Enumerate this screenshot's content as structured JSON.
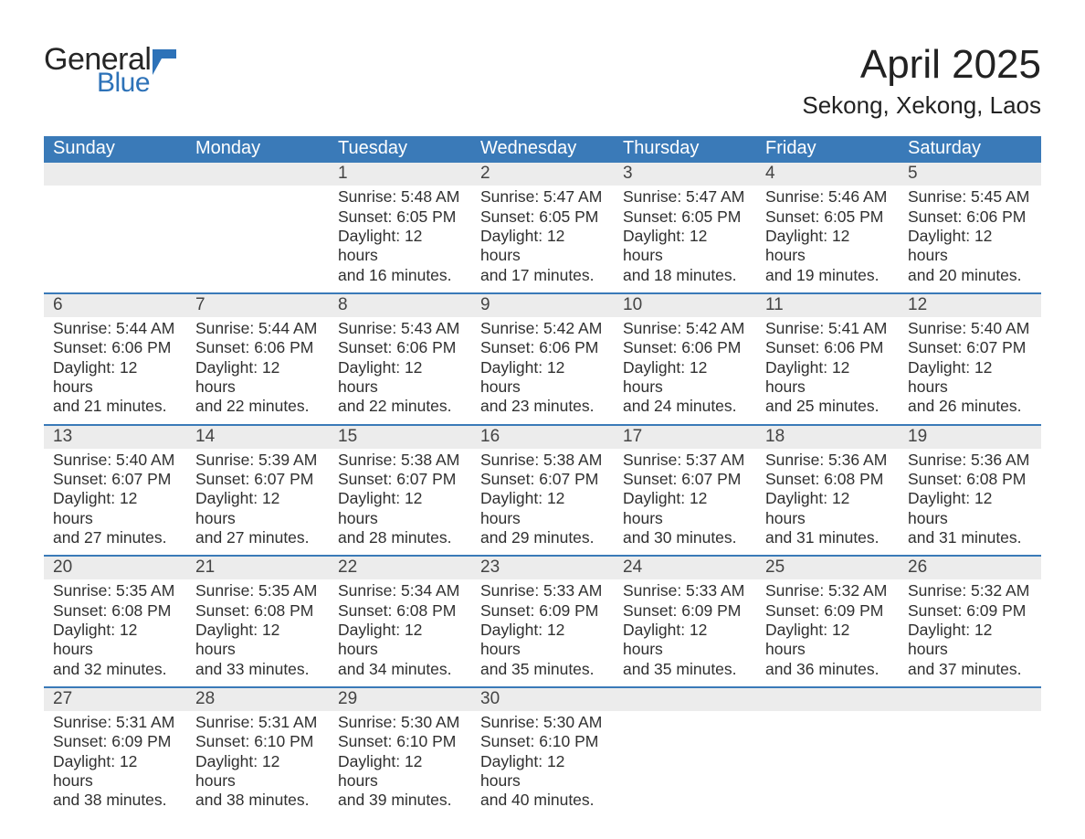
{
  "logo": {
    "word1": "General",
    "word2": "Blue",
    "flag_color": "#2d72b8"
  },
  "title": "April 2025",
  "location": "Sekong, Xekong, Laos",
  "header_bg": "#3a7ab8",
  "header_fg": "#ffffff",
  "daynum_bg": "#ececec",
  "rule_color": "#3a7ab8",
  "font_family": "Segoe UI",
  "day_names": [
    "Sunday",
    "Monday",
    "Tuesday",
    "Wednesday",
    "Thursday",
    "Friday",
    "Saturday"
  ],
  "labels": {
    "sunrise": "Sunrise:",
    "sunset": "Sunset:",
    "daylight": "Daylight:"
  },
  "days": [
    {
      "n": 1,
      "wd": 2,
      "sunrise": "5:48 AM",
      "sunset": "6:05 PM",
      "dl_h": 12,
      "dl_m": 16
    },
    {
      "n": 2,
      "wd": 3,
      "sunrise": "5:47 AM",
      "sunset": "6:05 PM",
      "dl_h": 12,
      "dl_m": 17
    },
    {
      "n": 3,
      "wd": 4,
      "sunrise": "5:47 AM",
      "sunset": "6:05 PM",
      "dl_h": 12,
      "dl_m": 18
    },
    {
      "n": 4,
      "wd": 5,
      "sunrise": "5:46 AM",
      "sunset": "6:05 PM",
      "dl_h": 12,
      "dl_m": 19
    },
    {
      "n": 5,
      "wd": 6,
      "sunrise": "5:45 AM",
      "sunset": "6:06 PM",
      "dl_h": 12,
      "dl_m": 20
    },
    {
      "n": 6,
      "wd": 0,
      "sunrise": "5:44 AM",
      "sunset": "6:06 PM",
      "dl_h": 12,
      "dl_m": 21
    },
    {
      "n": 7,
      "wd": 1,
      "sunrise": "5:44 AM",
      "sunset": "6:06 PM",
      "dl_h": 12,
      "dl_m": 22
    },
    {
      "n": 8,
      "wd": 2,
      "sunrise": "5:43 AM",
      "sunset": "6:06 PM",
      "dl_h": 12,
      "dl_m": 22
    },
    {
      "n": 9,
      "wd": 3,
      "sunrise": "5:42 AM",
      "sunset": "6:06 PM",
      "dl_h": 12,
      "dl_m": 23
    },
    {
      "n": 10,
      "wd": 4,
      "sunrise": "5:42 AM",
      "sunset": "6:06 PM",
      "dl_h": 12,
      "dl_m": 24
    },
    {
      "n": 11,
      "wd": 5,
      "sunrise": "5:41 AM",
      "sunset": "6:06 PM",
      "dl_h": 12,
      "dl_m": 25
    },
    {
      "n": 12,
      "wd": 6,
      "sunrise": "5:40 AM",
      "sunset": "6:07 PM",
      "dl_h": 12,
      "dl_m": 26
    },
    {
      "n": 13,
      "wd": 0,
      "sunrise": "5:40 AM",
      "sunset": "6:07 PM",
      "dl_h": 12,
      "dl_m": 27
    },
    {
      "n": 14,
      "wd": 1,
      "sunrise": "5:39 AM",
      "sunset": "6:07 PM",
      "dl_h": 12,
      "dl_m": 27
    },
    {
      "n": 15,
      "wd": 2,
      "sunrise": "5:38 AM",
      "sunset": "6:07 PM",
      "dl_h": 12,
      "dl_m": 28
    },
    {
      "n": 16,
      "wd": 3,
      "sunrise": "5:38 AM",
      "sunset": "6:07 PM",
      "dl_h": 12,
      "dl_m": 29
    },
    {
      "n": 17,
      "wd": 4,
      "sunrise": "5:37 AM",
      "sunset": "6:07 PM",
      "dl_h": 12,
      "dl_m": 30
    },
    {
      "n": 18,
      "wd": 5,
      "sunrise": "5:36 AM",
      "sunset": "6:08 PM",
      "dl_h": 12,
      "dl_m": 31
    },
    {
      "n": 19,
      "wd": 6,
      "sunrise": "5:36 AM",
      "sunset": "6:08 PM",
      "dl_h": 12,
      "dl_m": 31
    },
    {
      "n": 20,
      "wd": 0,
      "sunrise": "5:35 AM",
      "sunset": "6:08 PM",
      "dl_h": 12,
      "dl_m": 32
    },
    {
      "n": 21,
      "wd": 1,
      "sunrise": "5:35 AM",
      "sunset": "6:08 PM",
      "dl_h": 12,
      "dl_m": 33
    },
    {
      "n": 22,
      "wd": 2,
      "sunrise": "5:34 AM",
      "sunset": "6:08 PM",
      "dl_h": 12,
      "dl_m": 34
    },
    {
      "n": 23,
      "wd": 3,
      "sunrise": "5:33 AM",
      "sunset": "6:09 PM",
      "dl_h": 12,
      "dl_m": 35
    },
    {
      "n": 24,
      "wd": 4,
      "sunrise": "5:33 AM",
      "sunset": "6:09 PM",
      "dl_h": 12,
      "dl_m": 35
    },
    {
      "n": 25,
      "wd": 5,
      "sunrise": "5:32 AM",
      "sunset": "6:09 PM",
      "dl_h": 12,
      "dl_m": 36
    },
    {
      "n": 26,
      "wd": 6,
      "sunrise": "5:32 AM",
      "sunset": "6:09 PM",
      "dl_h": 12,
      "dl_m": 37
    },
    {
      "n": 27,
      "wd": 0,
      "sunrise": "5:31 AM",
      "sunset": "6:09 PM",
      "dl_h": 12,
      "dl_m": 38
    },
    {
      "n": 28,
      "wd": 1,
      "sunrise": "5:31 AM",
      "sunset": "6:10 PM",
      "dl_h": 12,
      "dl_m": 38
    },
    {
      "n": 29,
      "wd": 2,
      "sunrise": "5:30 AM",
      "sunset": "6:10 PM",
      "dl_h": 12,
      "dl_m": 39
    },
    {
      "n": 30,
      "wd": 3,
      "sunrise": "5:30 AM",
      "sunset": "6:10 PM",
      "dl_h": 12,
      "dl_m": 40
    }
  ]
}
